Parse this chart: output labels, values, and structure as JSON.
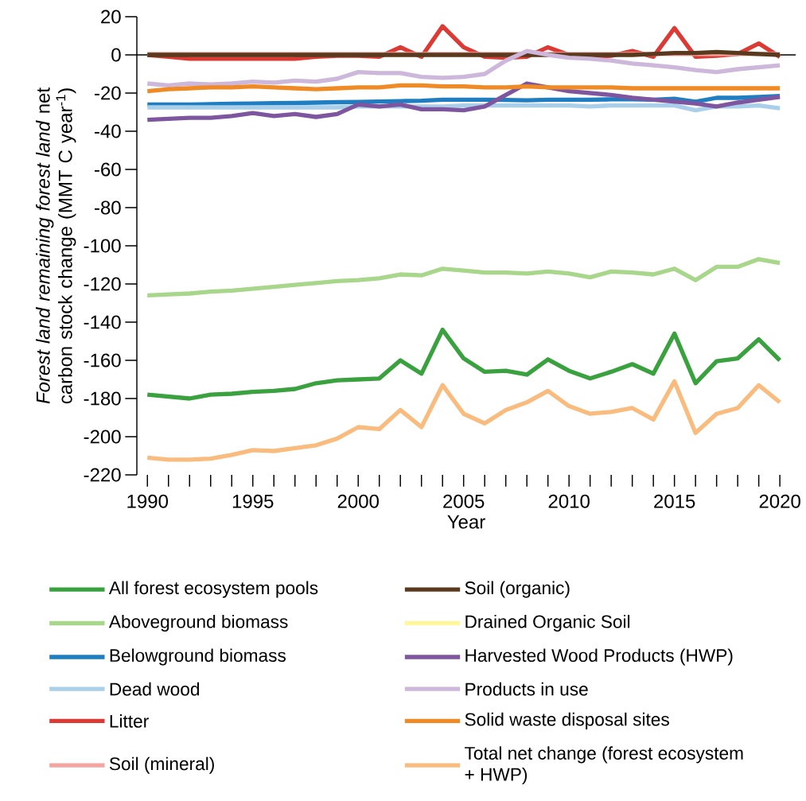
{
  "chart_data": {
    "type": "line",
    "xlabel": "Year",
    "ylabel": "*Forest land remaining forest land* net carbon stock change (MMT C year$^{-1}$)",
    "x": [
      1990,
      1991,
      1992,
      1993,
      1994,
      1995,
      1996,
      1997,
      1998,
      1999,
      2000,
      2001,
      2002,
      2003,
      2004,
      2005,
      2006,
      2007,
      2008,
      2009,
      2010,
      2011,
      2012,
      2013,
      2014,
      2015,
      2016,
      2017,
      2018,
      2019,
      2020
    ],
    "xlim": [
      1989.5,
      2020.75
    ],
    "ylim": [
      -220,
      20
    ],
    "xticks": [
      1990,
      {
        "value": 1991,
        "label": null
      },
      {
        "value": 1992,
        "label": null
      },
      {
        "value": 1993,
        "label": null
      },
      {
        "value": 1994,
        "label": null
      },
      1995,
      {
        "value": 1996,
        "label": null
      },
      {
        "value": 1997,
        "label": null
      },
      {
        "value": 1998,
        "label": null
      },
      {
        "value": 1999,
        "label": null
      },
      2000,
      {
        "value": 2001,
        "label": null
      },
      {
        "value": 2002,
        "label": null
      },
      {
        "value": 2003,
        "label": null
      },
      {
        "value": 2004,
        "label": null
      },
      2005,
      {
        "value": 2006,
        "label": null
      },
      {
        "value": 2007,
        "label": null
      },
      {
        "value": 2008,
        "label": null
      },
      {
        "value": 2009,
        "label": null
      },
      2010,
      {
        "value": 2011,
        "label": null
      },
      {
        "value": 2012,
        "label": null
      },
      {
        "value": 2013,
        "label": null
      },
      {
        "value": 2014,
        "label": null
      },
      2015,
      {
        "value": 2016,
        "label": null
      },
      {
        "value": 2017,
        "label": null
      },
      {
        "value": 2018,
        "label": null
      },
      {
        "value": 2019,
        "label": null
      },
      2020
    ],
    "yticks": [
      20,
      0,
      -20,
      -40,
      -60,
      -80,
      -100,
      -120,
      -140,
      -160,
      -180,
      -200,
      -220
    ],
    "legend": "bottom",
    "ref_lines": [
      {
        "axis": "y",
        "value": 0,
        "color": "#000000"
      }
    ],
    "series": [
      {
        "name": "All forest ecosystem pools",
        "color": "#3aa13f",
        "values": [
          -178,
          -179,
          -180,
          -178,
          -177.5,
          -176.5,
          -176,
          -175,
          -172,
          -170.5,
          -170,
          -169.5,
          -160,
          -167,
          -144,
          -159,
          -166,
          -165.5,
          -167.5,
          -159.5,
          -165.5,
          -169.5,
          -166,
          -162,
          -167,
          -146,
          -172,
          -160.5,
          -159,
          -149,
          -160
        ]
      },
      {
        "name": "Aboveground biomass",
        "color": "#a8d68a",
        "values": [
          -126,
          -125.5,
          -125,
          -124,
          -123.5,
          -122.5,
          -121.5,
          -120.5,
          -119.5,
          -118.5,
          -118,
          -117,
          -115,
          -115.5,
          -112,
          -113,
          -114,
          -114,
          -114.5,
          -113.5,
          -114.5,
          -116.5,
          -113.5,
          -114,
          -115,
          -112,
          -118,
          -111,
          -111,
          -107,
          -109
        ]
      },
      {
        "name": "Belowground biomass",
        "color": "#1f7ec2",
        "values": [
          -26,
          -26,
          -26,
          -25.8,
          -25.6,
          -25.5,
          -25.3,
          -25.2,
          -25,
          -24.8,
          -24.7,
          -24.4,
          -24.2,
          -24,
          -23.5,
          -23.5,
          -23.5,
          -23.6,
          -23.8,
          -23.5,
          -23.5,
          -23.5,
          -23.3,
          -23.3,
          -23.5,
          -23,
          -24.5,
          -22.5,
          -22.5,
          -22,
          -21.5
        ]
      },
      {
        "name": "Dead wood",
        "color": "#a9cfea",
        "values": [
          -27.5,
          -27.5,
          -27.5,
          -27.5,
          -27.5,
          -27.5,
          -27.5,
          -27.5,
          -27.5,
          -27.5,
          -27,
          -27,
          -27,
          -27,
          -27,
          -26.5,
          -26.5,
          -26.5,
          -26.5,
          -26.5,
          -26.5,
          -27,
          -26.5,
          -26.5,
          -26.5,
          -26.5,
          -29,
          -27,
          -27,
          -26.5,
          -28
        ]
      },
      {
        "name": "Litter",
        "color": "#dc3a35",
        "values": [
          0,
          -1,
          -2,
          -2,
          -2,
          -2,
          -2,
          -2,
          -1,
          -0.5,
          -0.5,
          -1,
          4,
          -1,
          15,
          4,
          -1,
          -1.5,
          -1,
          4,
          0,
          -1,
          -0.5,
          2,
          -1,
          14,
          -1,
          -0.5,
          0.5,
          6,
          -1
        ]
      },
      {
        "name": "Soil (mineral)",
        "color": "#f4a5a0",
        "values": [
          0.5,
          0.5,
          0.5,
          0.5,
          0.5,
          0.5,
          0.5,
          0.5,
          0.5,
          0.5,
          0.5,
          0.5,
          0.5,
          0.5,
          0.5,
          0.5,
          0.5,
          0.5,
          0.5,
          0.5,
          0.5,
          0.5,
          0.5,
          0.5,
          0.5,
          0.5,
          0.5,
          0.5,
          0.5,
          0.5,
          0.5
        ]
      },
      {
        "name": "Soil (organic)",
        "color": "#5a3a1e",
        "values": [
          0,
          0,
          0,
          0,
          0,
          0,
          0,
          0,
          0,
          0,
          0,
          0,
          0,
          0,
          0,
          0,
          0,
          0,
          0,
          0,
          0,
          0,
          0,
          0,
          0.5,
          1,
          1,
          1.5,
          1,
          0.5,
          0
        ]
      },
      {
        "name": "Drained Organic Soil",
        "color": "#fff799",
        "values": [
          null,
          null,
          null,
          null,
          null,
          null,
          null,
          null,
          null,
          null,
          null,
          null,
          null,
          null,
          null,
          null,
          null,
          null,
          null,
          null,
          null,
          null,
          null,
          null,
          null,
          null,
          null,
          null,
          null,
          null,
          null
        ]
      },
      {
        "name": "Harvested Wood Products (HWP)",
        "color": "#7e56a0",
        "values": [
          -34,
          -33.5,
          -33,
          -33,
          -32,
          -30.5,
          -32,
          -31,
          -32.5,
          -31,
          -26,
          -27,
          -26,
          -28.5,
          -28.5,
          -29,
          -27,
          -21,
          -15,
          -17,
          -19,
          -20,
          -21,
          -22.5,
          -23.5,
          -24.5,
          -25.5,
          -27,
          -25,
          -23.5,
          -22
        ]
      },
      {
        "name": "Products in use",
        "color": "#cdb7da",
        "values": [
          -15,
          -16,
          -15,
          -15.5,
          -15,
          -14,
          -14.5,
          -13.5,
          -14,
          -12.5,
          -9,
          -9.5,
          -9.5,
          -11.5,
          -12,
          -11.5,
          -10,
          -3,
          2,
          0,
          -1.5,
          -2,
          -3,
          -4.5,
          -5.5,
          -6.5,
          -8,
          -9,
          -7.5,
          -6.5,
          -5.5
        ]
      },
      {
        "name": "Solid waste disposal sites",
        "color": "#f08a24",
        "values": [
          -19,
          -18,
          -17.5,
          -17,
          -17,
          -16.5,
          -17,
          -17.5,
          -18,
          -17.5,
          -17,
          -17,
          -16,
          -16,
          -16.5,
          -16.5,
          -17,
          -17,
          -16.5,
          -17,
          -17,
          -17,
          -17,
          -17.5,
          -17.5,
          -17.5,
          -17.5,
          -17.5,
          -17.5,
          -17.5,
          -17.5
        ]
      },
      {
        "name": "Total net change (forest ecosystem + HWP)",
        "color": "#f9bc7e",
        "values": [
          -211,
          -212,
          -212,
          -211.5,
          -209.5,
          -207,
          -207.5,
          -206,
          -204.5,
          -201,
          -195,
          -196,
          -186,
          -195,
          -173,
          -188,
          -193,
          -186,
          -182,
          -176,
          -184,
          -188,
          -187,
          -185,
          -191,
          -171,
          -198,
          -188,
          -185,
          -173,
          -182
        ]
      }
    ]
  }
}
